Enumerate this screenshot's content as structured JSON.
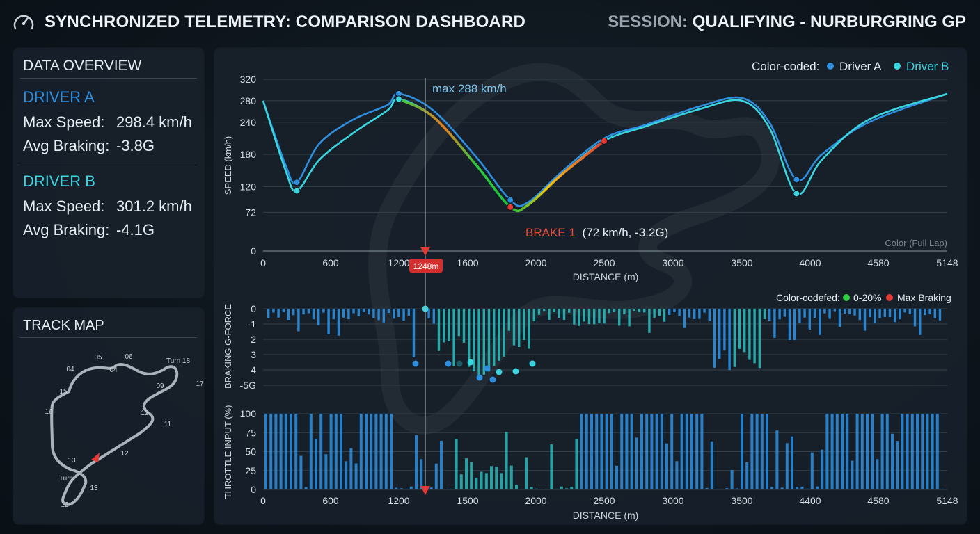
{
  "header": {
    "title": "SYNCHRONIZED TELEMETRY: COMPARISON DASHBOARD",
    "session_label": "SESSION:",
    "session_value": "QUALIFYING - NURBURGRING GP"
  },
  "overview": {
    "title": "DATA OVERVIEW",
    "drivers": [
      {
        "name": "DRIVER A",
        "color": "#2e8fe0",
        "max_speed_label": "Max Speed:",
        "max_speed": "298.4 km/h",
        "avg_braking_label": "Avg Braking:",
        "avg_braking": "-3.8G"
      },
      {
        "name": "DRIVER B",
        "color": "#3ad6e0",
        "max_speed_label": "Max Speed:",
        "max_speed": "301.2 km/h",
        "avg_braking_label": "Avg Braking:",
        "avg_braking": "-4.1G"
      }
    ]
  },
  "track_map": {
    "title": "TRACK MAP",
    "labels": [
      "05",
      "06",
      "04",
      "04",
      "Turn 18",
      "09",
      "17",
      "15",
      "16",
      "12",
      "11",
      "12",
      "13",
      "Turn",
      "13",
      "12"
    ]
  },
  "colors": {
    "driver_a": "#2e8fe0",
    "driver_b": "#3ad6e0",
    "brake": "#e53935",
    "accent_green": "#2ecc40"
  },
  "chart_data": [
    {
      "type": "line",
      "ylabel": "SPEED (km/h)",
      "xlabel": "DISTANCE (m)",
      "x_ticks": [
        "0",
        "600",
        "1200",
        "1600",
        "2000",
        "2500",
        "3000",
        "3500",
        "4000",
        "4580",
        "5148"
      ],
      "y_ticks": [
        "320",
        "280",
        "240",
        "180",
        "120",
        "72",
        "0"
      ],
      "legend": {
        "prefix": "Color-coded:",
        "items": [
          "Driver A",
          "Driver B"
        ],
        "placement": "top-right"
      },
      "footnote": "Color (Full Lap)",
      "series": [
        {
          "name": "Driver A",
          "color": "#2e8fe0",
          "x": [
            0,
            200,
            300,
            500,
            800,
            1100,
            1200,
            1400,
            1650,
            1850,
            1950,
            2200,
            2500,
            2800,
            3200,
            3500,
            3700,
            3900,
            4100,
            4500,
            5148
          ],
          "y": [
            280,
            160,
            128,
            200,
            245,
            272,
            293,
            262,
            175,
            95,
            90,
            150,
            210,
            235,
            270,
            285,
            240,
            133,
            180,
            240,
            293
          ]
        },
        {
          "name": "Driver B",
          "color": "#3ad6e0",
          "x": [
            0,
            200,
            300,
            500,
            800,
            1100,
            1200,
            1400,
            1650,
            1850,
            1950,
            2200,
            2500,
            2800,
            3200,
            3500,
            3700,
            3900,
            4100,
            4500,
            5148
          ],
          "y": [
            280,
            150,
            112,
            170,
            220,
            262,
            283,
            250,
            160,
            82,
            85,
            145,
            205,
            232,
            265,
            280,
            230,
            107,
            170,
            245,
            293
          ]
        }
      ],
      "annotations": {
        "max_label": "max 288 km/h",
        "brake_label": "BRAKE 1",
        "brake_detail": "(72 km/h, -3.2G)",
        "cursor_label": "1248m"
      }
    },
    {
      "type": "bar",
      "ylabel": "BRAKING G-FORCE",
      "y_ticks": [
        "0",
        "-1",
        "2",
        "3",
        "4",
        "-5G"
      ],
      "legend": {
        "prefix": "Color-codefed:",
        "items": [
          "0-20%",
          "Max Braking"
        ],
        "placement": "top-right"
      }
    },
    {
      "type": "bar",
      "ylabel": "THROTTLE INPUT (%)",
      "xlabel": "DISTANCE (m)",
      "x_ticks": [
        "0",
        "600",
        "1200",
        "1500",
        "2000",
        "2500",
        "3000",
        "3500",
        "4400",
        "4580",
        "5148"
      ],
      "y_ticks": [
        "100",
        "75",
        "50",
        "25",
        "0"
      ],
      "ylim": [
        0,
        100
      ]
    }
  ]
}
